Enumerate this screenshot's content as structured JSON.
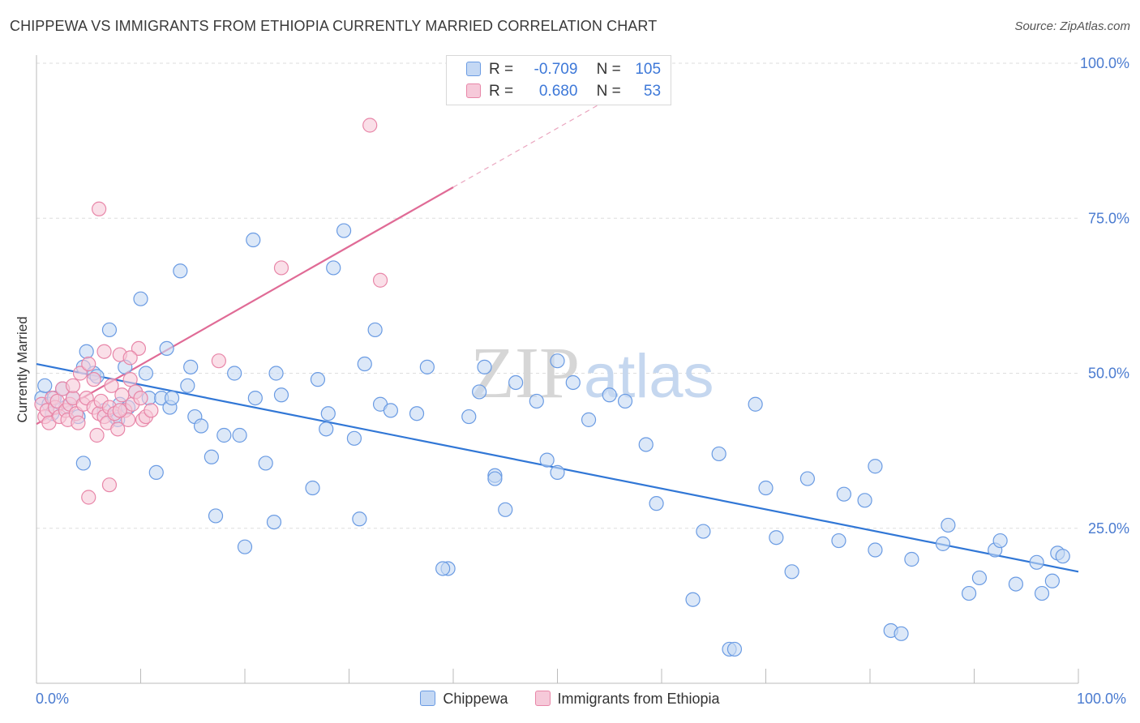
{
  "title": "CHIPPEWA VS IMMIGRANTS FROM ETHIOPIA CURRENTLY MARRIED CORRELATION CHART",
  "source": "Source: ZipAtlas.com",
  "watermark": {
    "zip": "ZIP",
    "atlas": "atlas"
  },
  "legend": {
    "r_label": "R =",
    "n_label": "N =",
    "rows": [
      {
        "r": "-0.709",
        "n": "105"
      },
      {
        "r": "0.680",
        "n": "53"
      }
    ]
  },
  "chart_data": {
    "type": "scatter",
    "title": "CHIPPEWA VS IMMIGRANTS FROM ETHIOPIA CURRENTLY MARRIED CORRELATION CHART",
    "xlabel": "",
    "ylabel": "Currently Married",
    "xlim": [
      0,
      100
    ],
    "ylim": [
      0,
      100
    ],
    "x_tick_labels": [
      "0.0%",
      "100.0%"
    ],
    "y_ticks": [
      25,
      50,
      75,
      100
    ],
    "y_tick_labels": [
      "25.0%",
      "50.0%",
      "75.0%",
      "100.0%"
    ],
    "grid": true,
    "legend_position": "top-center",
    "series": [
      {
        "name": "Chippewa",
        "color": "#6a9be3",
        "fill": "#c4d8f4",
        "r": -0.709,
        "n": 105,
        "trend": {
          "x0": 0,
          "y0": 51.5,
          "x1": 100,
          "y1": 18.0
        },
        "points": [
          [
            0.5,
            46
          ],
          [
            0.8,
            48
          ],
          [
            1.2,
            45
          ],
          [
            1.5,
            43.5
          ],
          [
            1.7,
            46
          ],
          [
            2.5,
            47.5
          ],
          [
            2.8,
            44.5
          ],
          [
            3.5,
            46
          ],
          [
            4,
            43
          ],
          [
            4.5,
            51
          ],
          [
            4.5,
            35.5
          ],
          [
            4.8,
            53.5
          ],
          [
            5.5,
            50
          ],
          [
            5.8,
            49.5
          ],
          [
            6.5,
            44
          ],
          [
            7,
            57
          ],
          [
            7.5,
            43
          ],
          [
            7.8,
            42.5
          ],
          [
            8,
            45
          ],
          [
            8.5,
            51
          ],
          [
            8.8,
            44.5
          ],
          [
            9.5,
            47
          ],
          [
            10,
            62
          ],
          [
            10.5,
            50
          ],
          [
            10.8,
            46
          ],
          [
            11.5,
            34
          ],
          [
            12,
            46
          ],
          [
            12.5,
            54
          ],
          [
            12.8,
            44.5
          ],
          [
            13,
            46
          ],
          [
            13.8,
            66.5
          ],
          [
            14.5,
            48
          ],
          [
            14.8,
            51
          ],
          [
            15.2,
            43
          ],
          [
            15.8,
            41.5
          ],
          [
            16.8,
            36.5
          ],
          [
            17.2,
            27
          ],
          [
            18,
            40
          ],
          [
            19,
            50
          ],
          [
            19.5,
            40
          ],
          [
            20,
            22
          ],
          [
            20.8,
            71.5
          ],
          [
            21,
            46
          ],
          [
            22,
            35.5
          ],
          [
            22.8,
            26
          ],
          [
            23,
            50
          ],
          [
            23.5,
            46.5
          ],
          [
            26.5,
            31.5
          ],
          [
            27,
            49
          ],
          [
            27.8,
            41
          ],
          [
            28,
            43.5
          ],
          [
            28.5,
            67
          ],
          [
            29.5,
            73
          ],
          [
            30.5,
            39.5
          ],
          [
            31,
            26.5
          ],
          [
            31.5,
            51.5
          ],
          [
            32.5,
            57
          ],
          [
            33,
            45
          ],
          [
            34,
            44
          ],
          [
            36.5,
            43.5
          ],
          [
            37.5,
            51
          ],
          [
            39.5,
            18.5
          ],
          [
            41.5,
            43
          ],
          [
            42.5,
            47
          ],
          [
            43,
            51
          ],
          [
            44,
            33.5
          ],
          [
            44,
            33
          ],
          [
            45,
            28
          ],
          [
            46,
            48.5
          ],
          [
            48,
            45.5
          ],
          [
            49,
            36
          ],
          [
            50,
            34
          ],
          [
            50,
            52
          ],
          [
            51.5,
            48.5
          ],
          [
            53,
            42.5
          ],
          [
            55,
            46.5
          ],
          [
            56.5,
            45.5
          ],
          [
            58.5,
            38.5
          ],
          [
            59.5,
            29
          ],
          [
            63,
            13.5
          ],
          [
            64,
            24.5
          ],
          [
            65.5,
            37
          ],
          [
            66.5,
            5.5
          ],
          [
            67,
            5.5
          ],
          [
            70,
            31.5
          ],
          [
            71,
            23.5
          ],
          [
            72.5,
            18
          ],
          [
            74,
            33
          ],
          [
            77,
            23
          ],
          [
            77.5,
            30.5
          ],
          [
            79.5,
            29.5
          ],
          [
            80.5,
            35
          ],
          [
            80.5,
            21.5
          ],
          [
            82,
            8.5
          ],
          [
            83,
            8
          ],
          [
            84,
            20
          ],
          [
            87,
            22.5
          ],
          [
            87.5,
            25.5
          ],
          [
            89.5,
            14.5
          ],
          [
            90.5,
            17
          ],
          [
            92,
            21.5
          ],
          [
            92.5,
            23
          ],
          [
            94,
            16
          ],
          [
            96,
            19.5
          ],
          [
            96.5,
            14.5
          ],
          [
            97.5,
            16.5
          ],
          [
            98,
            21
          ],
          [
            98.5,
            20.5
          ],
          [
            69,
            45
          ],
          [
            39,
            18.5
          ]
        ]
      },
      {
        "name": "Immigrants from Ethiopia",
        "color": "#e886a8",
        "fill": "#f6c9d9",
        "r": 0.68,
        "n": 53,
        "trend": {
          "x0": 0,
          "y0": 41.8,
          "x1": 40,
          "y1": 80.0,
          "dash_to_x": 55,
          "dash_to_y": 94.3
        },
        "points": [
          [
            0.5,
            45
          ],
          [
            0.8,
            43
          ],
          [
            1,
            44
          ],
          [
            1.2,
            42
          ],
          [
            1.5,
            46
          ],
          [
            1.8,
            44.5
          ],
          [
            2,
            45.5
          ],
          [
            2.2,
            43
          ],
          [
            2.5,
            47.5
          ],
          [
            2.8,
            44
          ],
          [
            3,
            42.5
          ],
          [
            3.2,
            45
          ],
          [
            3.5,
            46
          ],
          [
            3.8,
            43.5
          ],
          [
            4,
            42
          ],
          [
            4.2,
            50
          ],
          [
            4.5,
            45
          ],
          [
            4.8,
            46
          ],
          [
            5,
            51.5
          ],
          [
            5.5,
            44.5
          ],
          [
            5.8,
            40
          ],
          [
            6,
            43.5
          ],
          [
            6.2,
            45.5
          ],
          [
            6.5,
            43
          ],
          [
            6.8,
            42
          ],
          [
            7,
            44.5
          ],
          [
            7.2,
            48
          ],
          [
            7.5,
            43.5
          ],
          [
            7.8,
            41
          ],
          [
            8,
            53
          ],
          [
            8.2,
            46.5
          ],
          [
            8.5,
            44
          ],
          [
            8.8,
            42.5
          ],
          [
            9,
            49
          ],
          [
            9.2,
            45
          ],
          [
            9.5,
            47
          ],
          [
            9.8,
            54
          ],
          [
            10,
            46
          ],
          [
            10.2,
            42.5
          ],
          [
            5,
            30
          ],
          [
            5.5,
            49
          ],
          [
            6,
            76.5
          ],
          [
            6.5,
            53.5
          ],
          [
            7,
            32
          ],
          [
            8,
            44
          ],
          [
            9,
            52.5
          ],
          [
            10.5,
            43
          ],
          [
            11,
            44
          ],
          [
            17.5,
            52
          ],
          [
            23.5,
            67
          ],
          [
            32,
            90
          ],
          [
            33,
            65
          ],
          [
            3.5,
            48
          ]
        ]
      }
    ]
  }
}
